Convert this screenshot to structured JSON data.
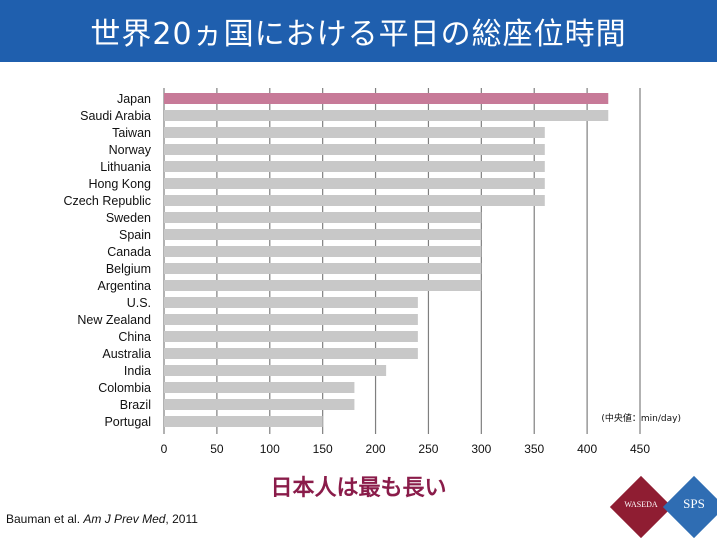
{
  "header": {
    "title": "世界20ヵ国における平日の総座位時間"
  },
  "chart_data": {
    "type": "bar",
    "orientation": "horizontal",
    "categories": [
      "Japan",
      "Saudi Arabia",
      "Taiwan",
      "Norway",
      "Lithuania",
      "Hong Kong",
      "Czech Republic",
      "Sweden",
      "Spain",
      "Canada",
      "Belgium",
      "Argentina",
      "U.S.",
      "New Zealand",
      "China",
      "Australia",
      "India",
      "Colombia",
      "Brazil",
      "Portugal"
    ],
    "values": [
      420,
      420,
      360,
      360,
      360,
      360,
      360,
      300,
      300,
      300,
      300,
      300,
      240,
      240,
      240,
      240,
      210,
      180,
      180,
      150
    ],
    "xlim": [
      0,
      450
    ],
    "xticks": [
      0,
      50,
      100,
      150,
      200,
      250,
      300,
      350,
      400,
      450
    ],
    "grid": true,
    "unit_note": "(中央値：min/day)",
    "colors": {
      "highlight": "#c77a98",
      "default": "#c8c8c8",
      "grid": "#7f7f7f"
    },
    "highlight_category": "Japan"
  },
  "subtitle": "日本人は最も長い",
  "citation": {
    "authors": "Bauman et al.",
    "journal": "Am J Prev Med",
    "year": ", 2011"
  },
  "logos": {
    "left": "WASEDA",
    "right": "SPS"
  }
}
